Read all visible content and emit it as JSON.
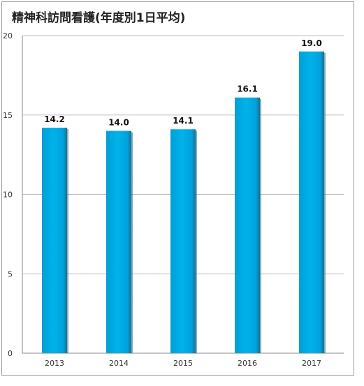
{
  "chart_data": {
    "type": "bar",
    "title": "精神科訪問看護(年度別1日平均)",
    "xlabel": "",
    "ylabel": "",
    "categories": [
      "2013",
      "2014",
      "2015",
      "2016",
      "2017"
    ],
    "values": [
      14.2,
      14.0,
      14.1,
      16.1,
      19.0
    ],
    "data_labels": [
      "14.2",
      "14.0",
      "14.1",
      "16.1",
      "19.0"
    ],
    "ylim": [
      0,
      20
    ],
    "yticks": [
      0,
      5,
      10,
      15,
      20
    ],
    "ytick_labels": [
      "0",
      "5",
      "10",
      "15",
      "20"
    ],
    "grid": true,
    "legend": "none",
    "colors": {
      "bar": "#00a9e0",
      "bar_shadow": "#1f6d87",
      "grid": "#bdbdbd",
      "axis": "#888888"
    }
  }
}
